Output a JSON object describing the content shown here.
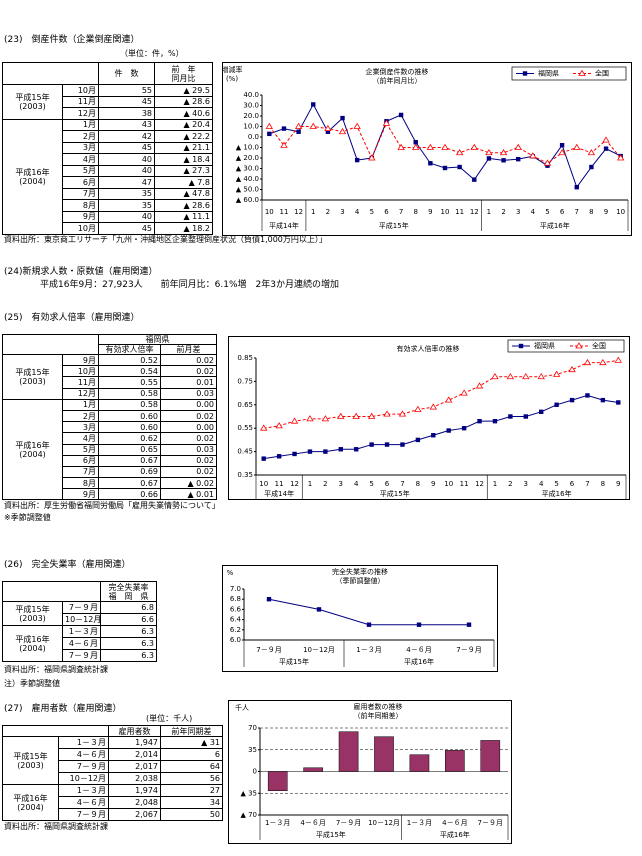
{
  "s23": {
    "heading": "(23)　倒産件数（企業倒産関連）",
    "unit": "（単位：件，%）",
    "table": {
      "headers": [
        [
          "件　数"
        ],
        [
          "前　年",
          "同月比"
        ]
      ],
      "groups": [
        {
          "era": [
            "平成15年",
            "(2003)"
          ],
          "rows": [
            [
              "10月",
              "55",
              "▲ 29.5"
            ],
            [
              "11月",
              "45",
              "▲ 28.6"
            ],
            [
              "12月",
              "38",
              "▲ 40.6"
            ]
          ]
        },
        {
          "era": [
            "平成16年",
            "(2004)"
          ],
          "rows": [
            [
              "1月",
              "43",
              "▲ 20.4"
            ],
            [
              "2月",
              "42",
              "▲ 22.2"
            ],
            [
              "3月",
              "45",
              "▲ 21.1"
            ],
            [
              "4月",
              "40",
              "▲ 18.4"
            ],
            [
              "5月",
              "40",
              "▲ 27.3"
            ],
            [
              "6月",
              "47",
              "▲ 7.8"
            ],
            [
              "7月",
              "35",
              "▲ 47.8"
            ],
            [
              "8月",
              "35",
              "▲ 28.6"
            ],
            [
              "9月",
              "40",
              "▲ 11.1"
            ],
            [
              "10月",
              "45",
              "▲ 18.2"
            ]
          ]
        }
      ]
    },
    "source": "資料出所：東京商工リサーチ「九州・沖縄地区企業整理倒産状況（負債1,000万円以上）」"
  },
  "s24": {
    "heading": "(24)新規求人数・原数値（雇用関連）",
    "text": "平成16年9月：27,923人　　前年同月比：6.1%増　2年3か月連続の増加"
  },
  "s25": {
    "heading": "(25)　有効求人倍率（雇用関連）",
    "table": {
      "header_top": "福岡県",
      "headers": [
        [
          "有効求人倍率"
        ],
        [
          "前月差"
        ]
      ],
      "groups": [
        {
          "era": [
            "平成15年",
            "(2003)"
          ],
          "rows": [
            [
              "9月",
              "0.52",
              "0.02"
            ],
            [
              "10月",
              "0.54",
              "0.02"
            ],
            [
              "11月",
              "0.55",
              "0.01"
            ],
            [
              "12月",
              "0.58",
              "0.03"
            ]
          ]
        },
        {
          "era": [
            "平成16年",
            "(2004)"
          ],
          "rows": [
            [
              "1月",
              "0.58",
              "0.00"
            ],
            [
              "2月",
              "0.60",
              "0.02"
            ],
            [
              "3月",
              "0.60",
              "0.00"
            ],
            [
              "4月",
              "0.62",
              "0.02"
            ],
            [
              "5月",
              "0.65",
              "0.03"
            ],
            [
              "6月",
              "0.67",
              "0.02"
            ],
            [
              "7月",
              "0.69",
              "0.02"
            ],
            [
              "8月",
              "0.67",
              "▲ 0.02"
            ],
            [
              "9月",
              "0.66",
              "▲ 0.01"
            ]
          ]
        }
      ]
    },
    "source": "資料出所：厚生労働省福岡労働局「雇用失業情勢について」",
    "note": "※季節調整値"
  },
  "s26": {
    "heading": "(26)　完全失業率（雇用関連）",
    "table": {
      "headers": [
        [
          "完全失業率",
          "福　岡　県"
        ]
      ],
      "groups": [
        {
          "era": [
            "平成15年",
            "(2003)"
          ],
          "rows": [
            [
              "7－９月",
              "6.8"
            ],
            [
              "10－12月",
              "6.6"
            ]
          ]
        },
        {
          "era": [
            "平成16年",
            "(2004)"
          ],
          "rows": [
            [
              "1－３月",
              "6.3"
            ],
            [
              "4－６月",
              "6.3"
            ],
            [
              "7－９月",
              "6.3"
            ]
          ]
        }
      ]
    },
    "source": "資料出所：福岡県調査統計課",
    "note": "注）季節調整値"
  },
  "s27": {
    "heading": "(27)　雇用者数（雇用関連）",
    "unit": "(単位：千人)",
    "table": {
      "headers": [
        [
          "雇用者数"
        ],
        [
          "前年同期差"
        ]
      ],
      "groups": [
        {
          "era": [
            "平成15年",
            "(2003)"
          ],
          "rows": [
            [
              "1－３月",
              "1,947",
              "▲ 31"
            ],
            [
              "4－６月",
              "2,014",
              "6"
            ],
            [
              "7－９月",
              "2,017",
              "64"
            ],
            [
              "10－12月",
              "2,038",
              "56"
            ]
          ]
        },
        {
          "era": [
            "平成16年",
            "(2004)"
          ],
          "rows": [
            [
              "1－３月",
              "1,974",
              "27"
            ],
            [
              "4－６月",
              "2,048",
              "34"
            ],
            [
              "7－９月",
              "2,067",
              "50"
            ]
          ]
        }
      ]
    },
    "source": "資料出所：福岡県調査統計課"
  },
  "chart_data": [
    {
      "type": "line",
      "title": "企業倒産件数の推移",
      "subtitle": "（前年同月比）",
      "ylabel": [
        "増減率",
        "(%)"
      ],
      "legend": "top-right",
      "groups": [
        {
          "label": "平成14年",
          "categories": [
            "10",
            "11",
            "12"
          ]
        },
        {
          "label": "平成15年",
          "categories": [
            "1",
            "2",
            "3",
            "4",
            "5",
            "6",
            "7",
            "8",
            "9",
            "10",
            "11",
            "12"
          ]
        },
        {
          "label": "平成16年",
          "categories": [
            "1",
            "2",
            "3",
            "4",
            "5",
            "6",
            "7",
            "8",
            "9",
            "10"
          ]
        }
      ],
      "series": [
        {
          "name": "福岡県",
          "color": "#000080",
          "marker": "square",
          "line_style": "solid",
          "values": [
            3,
            8,
            5,
            31,
            5,
            18,
            -22,
            -20,
            15,
            21,
            -5,
            -25,
            -29.5,
            -28.6,
            -40.6,
            -20.4,
            -22.2,
            -21.1,
            -18.4,
            -27.3,
            -7.8,
            -47.8,
            -28.6,
            -11.1,
            -18.2
          ]
        },
        {
          "name": "全国",
          "color": "#ff0000",
          "marker": "triangle",
          "line_style": "dashed",
          "values": [
            10,
            -8,
            10,
            10,
            8,
            5,
            10,
            -20,
            13,
            -10,
            -10,
            -10,
            -10,
            -15,
            -10,
            -15,
            -15,
            -10,
            -18,
            -25,
            -15,
            -10,
            -15,
            -3,
            -20
          ]
        }
      ],
      "ylim": [
        -60,
        40
      ],
      "yticks": [
        {
          "value": 40,
          "label": "40.0"
        },
        {
          "value": 30,
          "label": "30.0"
        },
        {
          "value": 20,
          "label": "20.0"
        },
        {
          "value": 10,
          "label": "10.0"
        },
        {
          "value": 0,
          "label": "0.0"
        },
        {
          "value": -10,
          "label": "▲ 10.0"
        },
        {
          "value": -20,
          "label": "▲ 20.0"
        },
        {
          "value": -30,
          "label": "▲ 30.0"
        },
        {
          "value": -40,
          "label": "▲ 40.0"
        },
        {
          "value": -50,
          "label": "▲ 50.0"
        },
        {
          "value": -60,
          "label": "▲ 60.0"
        }
      ],
      "grid": false
    },
    {
      "type": "line",
      "title": "有効求人倍率の推移",
      "legend": "top-right",
      "groups": [
        {
          "label": "平成14年",
          "categories": [
            "10",
            "11",
            "12"
          ]
        },
        {
          "label": "平成15年",
          "categories": [
            "1",
            "2",
            "3",
            "4",
            "5",
            "6",
            "7",
            "8",
            "9",
            "10",
            "11",
            "12"
          ]
        },
        {
          "label": "平成16年",
          "categories": [
            "1",
            "2",
            "3",
            "4",
            "5",
            "6",
            "7",
            "8",
            "9"
          ]
        }
      ],
      "series": [
        {
          "name": "福岡県",
          "color": "#000080",
          "marker": "square",
          "line_style": "solid",
          "values": [
            0.42,
            0.43,
            0.44,
            0.45,
            0.45,
            0.46,
            0.46,
            0.48,
            0.48,
            0.48,
            0.5,
            0.52,
            0.54,
            0.55,
            0.58,
            0.58,
            0.6,
            0.6,
            0.62,
            0.65,
            0.67,
            0.69,
            0.67,
            0.66
          ]
        },
        {
          "name": "全国",
          "color": "#ff0000",
          "marker": "triangle",
          "line_style": "dashed",
          "values": [
            0.55,
            0.56,
            0.58,
            0.59,
            0.59,
            0.6,
            0.6,
            0.6,
            0.61,
            0.61,
            0.63,
            0.64,
            0.67,
            0.7,
            0.73,
            0.77,
            0.77,
            0.77,
            0.77,
            0.78,
            0.8,
            0.83,
            0.83,
            0.84
          ]
        }
      ],
      "ylim": [
        0.35,
        0.85
      ],
      "yticks": [
        0.85,
        0.75,
        0.65,
        0.55,
        0.45,
        0.35
      ],
      "grid": false
    },
    {
      "type": "line",
      "title": "完全失業率の推移",
      "subtitle": "（季節調整値）",
      "ylabel": [
        "%"
      ],
      "groups": [
        {
          "label": "平成15年",
          "categories": [
            "7－９月",
            "10－12月"
          ]
        },
        {
          "label": "平成16年",
          "categories": [
            "1－３月",
            "4－６月",
            "7－９月"
          ]
        }
      ],
      "series": [
        {
          "color": "#000080",
          "marker": "square",
          "line_style": "solid",
          "values": [
            6.8,
            6.6,
            6.3,
            6.3,
            6.3
          ]
        }
      ],
      "ylim": [
        6.0,
        7.0
      ],
      "yticks": [
        {
          "value": 7,
          "label": "7.0"
        },
        {
          "value": 6.8,
          "label": "6.8"
        },
        {
          "value": 6.6,
          "label": "6.6"
        },
        {
          "value": 6.4,
          "label": "6.4"
        },
        {
          "value": 6.2,
          "label": "6.2"
        },
        {
          "value": 6,
          "label": "6.0"
        }
      ],
      "grid": false
    },
    {
      "type": "bar",
      "title": "雇用者数の推移",
      "subtitle": "（前年同期差）",
      "ylabel": [
        "千人"
      ],
      "groups": [
        {
          "label": "平成15年",
          "categories": [
            "1－３月",
            "4－６月",
            "7－９月",
            "10－12月"
          ]
        },
        {
          "label": "平成16年",
          "categories": [
            "1－３月",
            "4－６月",
            "7－９月"
          ]
        }
      ],
      "series": [
        {
          "color": "#993366",
          "values": [
            -31,
            6,
            64,
            56,
            27,
            34,
            50
          ]
        }
      ],
      "ylim": [
        -70,
        70
      ],
      "yticks": [
        70,
        35,
        0,
        {
          "value": -35,
          "label": "▲ 35"
        },
        {
          "value": -70,
          "label": "▲ 70"
        }
      ],
      "grid": true
    }
  ]
}
